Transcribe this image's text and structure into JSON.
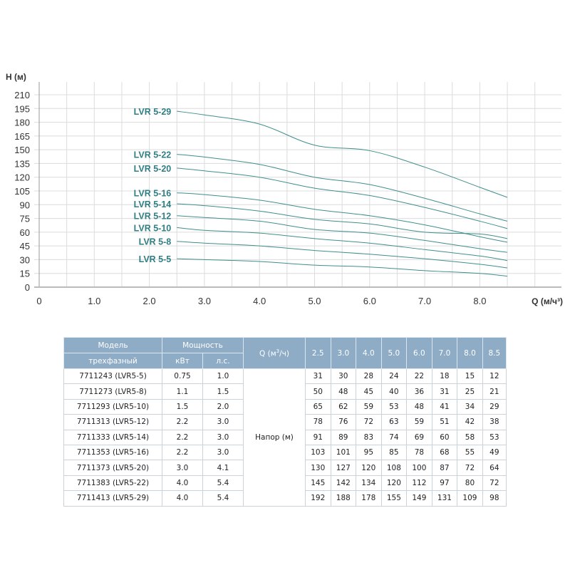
{
  "chart_data": {
    "type": "line",
    "ylabel": "H (м)",
    "xlabel": "Q (м/ч³)",
    "x_ticks": [
      "0",
      "1.0",
      "2.0",
      "3.0",
      "4.0",
      "5.0",
      "6.0",
      "7.0",
      "8.0"
    ],
    "y_ticks": [
      "0",
      "15",
      "30",
      "45",
      "60",
      "75",
      "90",
      "105",
      "120",
      "135",
      "150",
      "165",
      "180",
      "195",
      "210"
    ],
    "xlim": [
      0,
      9
    ],
    "ylim": [
      0,
      210
    ],
    "grid": true,
    "line_color": "#3f8f8c",
    "label_color": "#2f7f84",
    "x": [
      2.5,
      3.0,
      4.0,
      5.0,
      6.0,
      7.0,
      8.0,
      8.5
    ],
    "series": [
      {
        "name": "LVR 5-5",
        "values": [
          31,
          30,
          28,
          24,
          22,
          18,
          15,
          12
        ]
      },
      {
        "name": "LVR 5-8",
        "values": [
          50,
          48,
          45,
          40,
          36,
          31,
          25,
          21
        ]
      },
      {
        "name": "LVR 5-10",
        "values": [
          65,
          62,
          59,
          53,
          48,
          41,
          34,
          29
        ]
      },
      {
        "name": "LVR 5-12",
        "values": [
          78,
          76,
          72,
          63,
          59,
          51,
          42,
          38
        ]
      },
      {
        "name": "LVR 5-14",
        "values": [
          91,
          89,
          83,
          74,
          69,
          60,
          58,
          53
        ]
      },
      {
        "name": "LVR 5-16",
        "values": [
          103,
          101,
          95,
          85,
          78,
          68,
          55,
          49
        ]
      },
      {
        "name": "LVR 5-20",
        "values": [
          130,
          127,
          120,
          108,
          100,
          87,
          72,
          64
        ]
      },
      {
        "name": "LVR 5-22",
        "values": [
          145,
          142,
          134,
          120,
          112,
          97,
          80,
          72
        ]
      },
      {
        "name": "LVR 5-29",
        "values": [
          192,
          188,
          178,
          155,
          149,
          131,
          109,
          98
        ]
      }
    ]
  },
  "table": {
    "header": {
      "model": "Модель",
      "model_sub": "трехфазный",
      "power": "Мощность",
      "kw": "кВт",
      "hp": "л.с.",
      "q": "Q (м³/ч)",
      "q_values": [
        "2.5",
        "3.0",
        "4.0",
        "5.0",
        "6.0",
        "7.0",
        "8.0",
        "8.5"
      ]
    },
    "head_label": "Напор (м)",
    "rows": [
      {
        "model": "7711243 (LVR5-5)",
        "kw": "0.75",
        "hp": "1.0",
        "h": [
          "31",
          "30",
          "28",
          "24",
          "22",
          "18",
          "15",
          "12"
        ]
      },
      {
        "model": "7711273 (LVR5-8)",
        "kw": "1.1",
        "hp": "1.5",
        "h": [
          "50",
          "48",
          "45",
          "40",
          "36",
          "31",
          "25",
          "21"
        ]
      },
      {
        "model": "7711293 (LVR5-10)",
        "kw": "1.5",
        "hp": "2.0",
        "h": [
          "65",
          "62",
          "59",
          "53",
          "48",
          "41",
          "34",
          "29"
        ]
      },
      {
        "model": "7711313 (LVR5-12)",
        "kw": "2.2",
        "hp": "3.0",
        "h": [
          "78",
          "76",
          "72",
          "63",
          "59",
          "51",
          "42",
          "38"
        ]
      },
      {
        "model": "7711333 (LVR5-14)",
        "kw": "2.2",
        "hp": "3.0",
        "h": [
          "91",
          "89",
          "83",
          "74",
          "69",
          "60",
          "58",
          "53"
        ]
      },
      {
        "model": "7711353 (LVR5-16)",
        "kw": "2.2",
        "hp": "3.0",
        "h": [
          "103",
          "101",
          "95",
          "85",
          "78",
          "68",
          "55",
          "49"
        ]
      },
      {
        "model": "7711373 (LVR5-20)",
        "kw": "3.0",
        "hp": "4.1",
        "h": [
          "130",
          "127",
          "120",
          "108",
          "100",
          "87",
          "72",
          "64"
        ]
      },
      {
        "model": "7711383 (LVR5-22)",
        "kw": "4.0",
        "hp": "5.4",
        "h": [
          "145",
          "142",
          "134",
          "120",
          "112",
          "97",
          "80",
          "72"
        ]
      },
      {
        "model": "7711413 (LVR5-29)",
        "kw": "4.0",
        "hp": "5.4",
        "h": [
          "192",
          "188",
          "178",
          "155",
          "149",
          "131",
          "109",
          "98"
        ]
      }
    ]
  }
}
